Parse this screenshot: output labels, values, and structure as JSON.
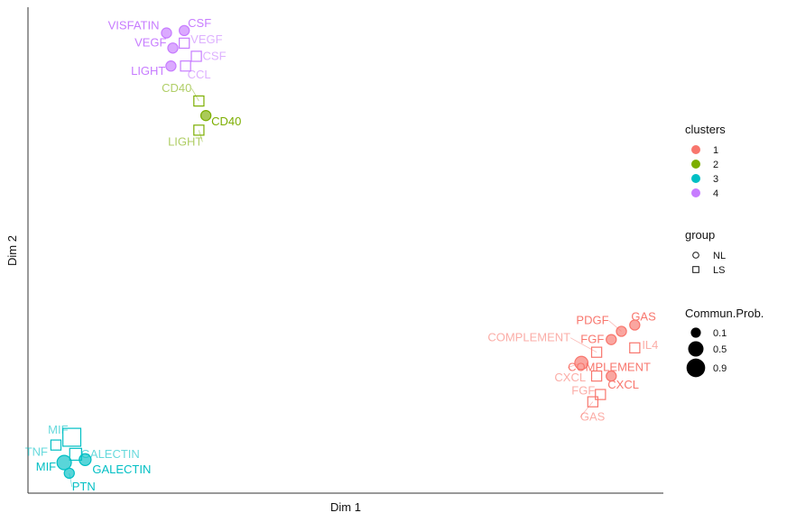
{
  "chart_data": {
    "type": "scatter",
    "xlabel": "Dim 1",
    "ylabel": "Dim 2",
    "xlim": [
      0,
      100
    ],
    "ylim": [
      0,
      100
    ],
    "grid": false,
    "legend_position": "right",
    "cluster_colors": {
      "1": "#F8766D",
      "2": "#7CAE00",
      "3": "#00BFC4",
      "4": "#C77CFF"
    },
    "legends": {
      "clusters": {
        "title": "clusters",
        "items": [
          "1",
          "2",
          "3",
          "4"
        ]
      },
      "group": {
        "title": "group",
        "items": [
          "NL",
          "LS"
        ]
      },
      "size": {
        "title": "Commun.Prob.",
        "items": [
          "0.1",
          "0.5",
          "0.9"
        ]
      }
    },
    "points": [
      {
        "label": "VISFATIN",
        "cluster": "4",
        "group": "NL",
        "prob": 0.1,
        "x": 21.8,
        "y": 94.7
      },
      {
        "label": "CSF",
        "cluster": "4",
        "group": "NL",
        "prob": 0.1,
        "x": 24.6,
        "y": 95.2
      },
      {
        "label": "VEGF",
        "cluster": "4",
        "group": "LS",
        "prob": 0.1,
        "x": 24.6,
        "y": 92.6
      },
      {
        "label": "VEGF",
        "cluster": "4",
        "group": "NL",
        "prob": 0.1,
        "x": 22.8,
        "y": 91.6
      },
      {
        "label": "CSF",
        "cluster": "4",
        "group": "LS",
        "prob": 0.1,
        "x": 26.5,
        "y": 89.9
      },
      {
        "label": "LIGHT",
        "cluster": "4",
        "group": "NL",
        "prob": 0.1,
        "x": 22.5,
        "y": 87.9
      },
      {
        "label": "CCL",
        "cluster": "4",
        "group": "LS",
        "prob": 0.1,
        "x": 24.8,
        "y": 87.9
      },
      {
        "label": "CD40",
        "cluster": "2",
        "group": "LS",
        "prob": 0.1,
        "x": 26.9,
        "y": 80.7
      },
      {
        "label": "CD40",
        "cluster": "2",
        "group": "NL",
        "prob": 0.1,
        "x": 28.0,
        "y": 77.7
      },
      {
        "label": "LIGHT",
        "cluster": "2",
        "group": "LS",
        "prob": 0.1,
        "x": 26.9,
        "y": 74.7
      },
      {
        "label": "PDGF",
        "cluster": "1",
        "group": "NL",
        "prob": 0.1,
        "x": 93.4,
        "y": 33.3
      },
      {
        "label": "GAS",
        "cluster": "1",
        "group": "NL",
        "prob": 0.1,
        "x": 95.5,
        "y": 34.6
      },
      {
        "label": "FGF",
        "cluster": "1",
        "group": "NL",
        "prob": 0.1,
        "x": 91.8,
        "y": 31.6
      },
      {
        "label": "IL4",
        "cluster": "1",
        "group": "LS",
        "prob": 0.1,
        "x": 95.5,
        "y": 29.9
      },
      {
        "label": "COMPLEMENT",
        "cluster": "1",
        "group": "LS",
        "prob": 0.1,
        "x": 89.5,
        "y": 29.0
      },
      {
        "label": "COMPLEMENT",
        "cluster": "1",
        "group": "NL",
        "prob": 0.3,
        "x": 87.1,
        "y": 26.8
      },
      {
        "label": "CXCL",
        "cluster": "1",
        "group": "NL",
        "prob": 0.1,
        "x": 91.8,
        "y": 24.1
      },
      {
        "label": "CXCL",
        "cluster": "1",
        "group": "LS",
        "prob": 0.1,
        "x": 89.5,
        "y": 24.1
      },
      {
        "label": "FGF",
        "cluster": "1",
        "group": "LS",
        "prob": 0.1,
        "x": 90.1,
        "y": 20.3
      },
      {
        "label": "GAS",
        "cluster": "1",
        "group": "LS",
        "prob": 0.1,
        "x": 88.9,
        "y": 18.8
      },
      {
        "label": "MIF",
        "cluster": "3",
        "group": "LS",
        "prob": 0.8,
        "x": 6.9,
        "y": 11.5
      },
      {
        "label": "TNF",
        "cluster": "3",
        "group": "LS",
        "prob": 0.1,
        "x": 4.4,
        "y": 9.9
      },
      {
        "label": "GALECTIN",
        "cluster": "3",
        "group": "LS",
        "prob": 0.2,
        "x": 7.5,
        "y": 8.0
      },
      {
        "label": "GALECTIN",
        "cluster": "3",
        "group": "NL",
        "prob": 0.2,
        "x": 9.0,
        "y": 6.9
      },
      {
        "label": "MIF",
        "cluster": "3",
        "group": "NL",
        "prob": 0.4,
        "x": 5.7,
        "y": 6.3
      },
      {
        "label": "PTN",
        "cluster": "3",
        "group": "NL",
        "prob": 0.1,
        "x": 6.5,
        "y": 4.1
      }
    ]
  }
}
